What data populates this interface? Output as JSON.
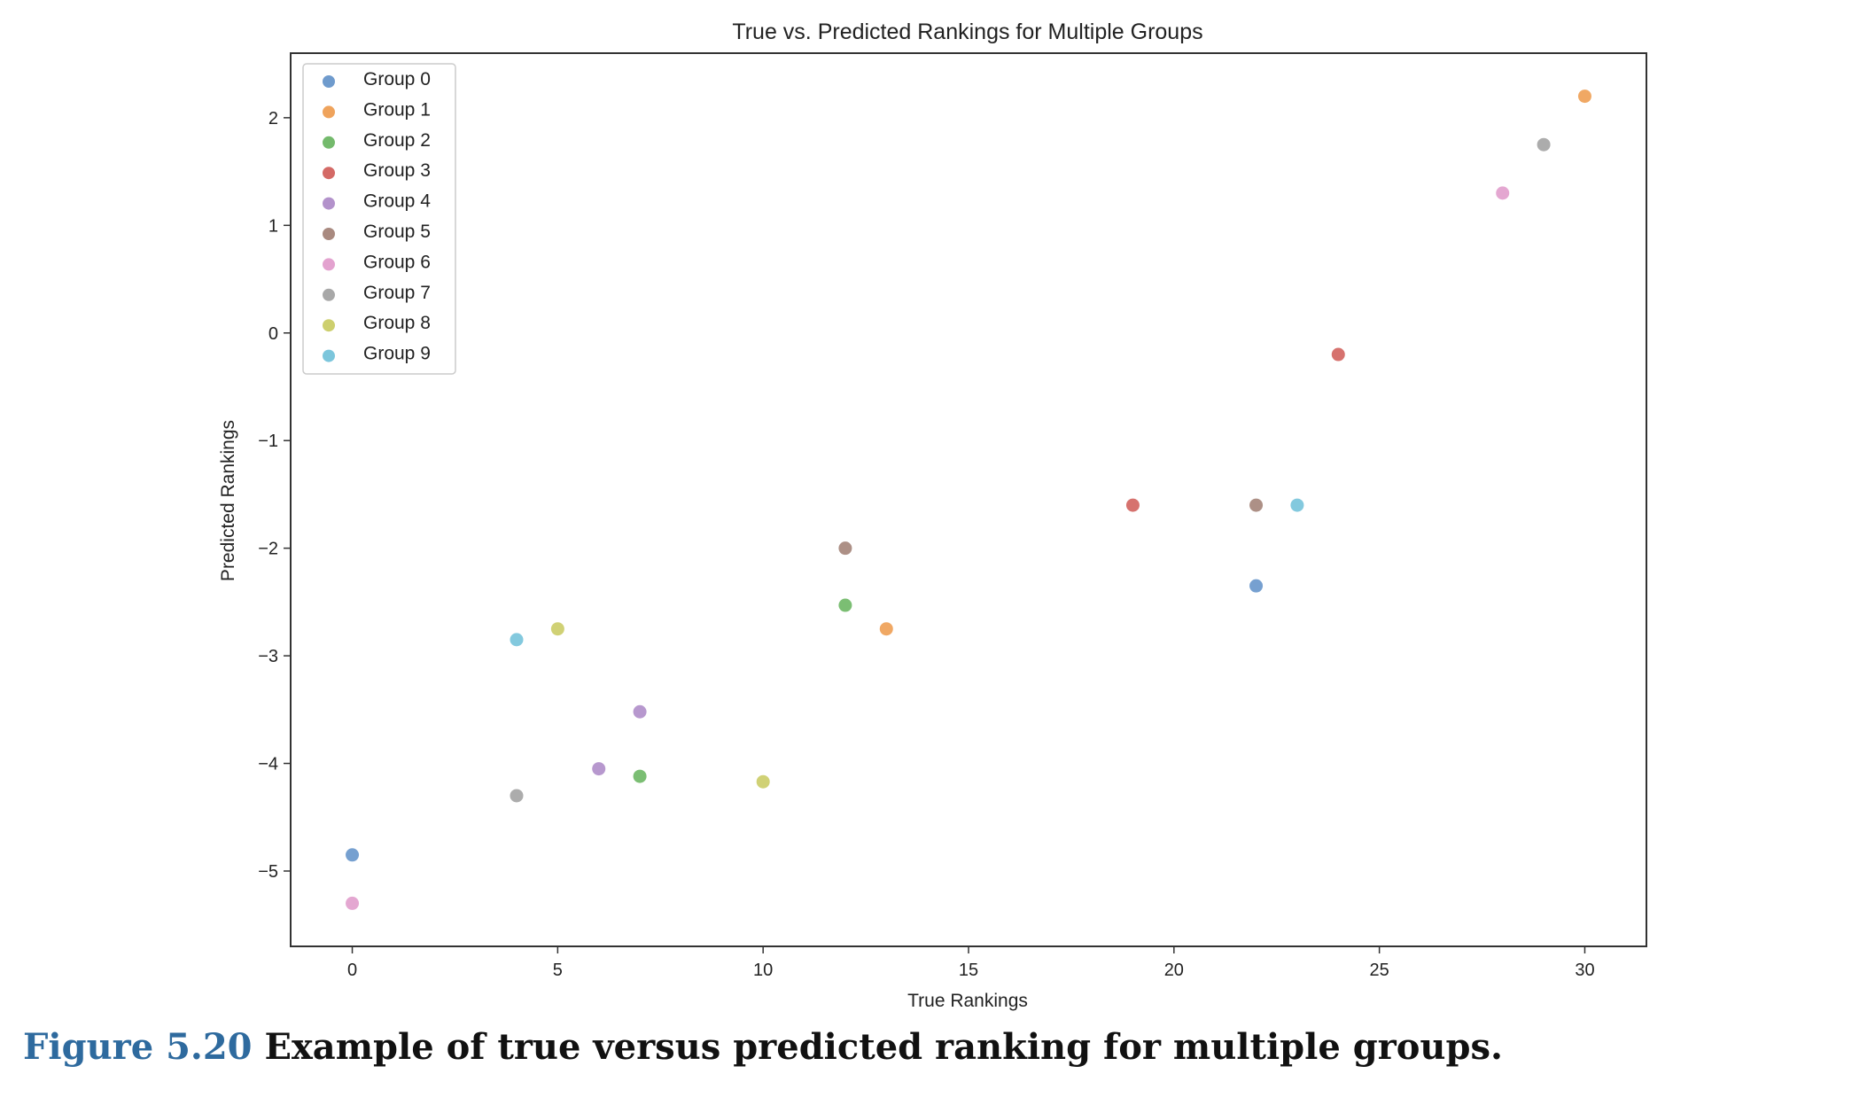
{
  "chart_data": {
    "type": "scatter",
    "title": "True vs. Predicted Rankings for Multiple Groups",
    "xlabel": "True Rankings",
    "ylabel": "Predicted Rankings",
    "xlim": [
      -1.5,
      31.5
    ],
    "ylim": [
      -5.7,
      2.6
    ],
    "xticks": [
      0,
      5,
      10,
      15,
      20,
      25,
      30
    ],
    "xtick_labels": [
      "0",
      "5",
      "10",
      "15",
      "20",
      "25",
      "30"
    ],
    "yticks": [
      -5,
      -4,
      -3,
      -2,
      -1,
      0,
      1,
      2
    ],
    "ytick_labels": [
      "−5",
      "−4",
      "−3",
      "−2",
      "−1",
      "0",
      "1",
      "2"
    ],
    "grid": false,
    "legend_position": "top-left",
    "series": [
      {
        "name": "Group 0",
        "color": "#6f9bcd",
        "points": [
          [
            0,
            -4.85
          ],
          [
            22,
            -2.35
          ]
        ]
      },
      {
        "name": "Group 1",
        "color": "#efa35c",
        "points": [
          [
            30,
            2.2
          ],
          [
            13,
            -2.75
          ]
        ]
      },
      {
        "name": "Group 2",
        "color": "#74ba6c",
        "points": [
          [
            12,
            -2.53
          ],
          [
            7,
            -4.12
          ]
        ]
      },
      {
        "name": "Group 3",
        "color": "#d46a66",
        "points": [
          [
            24,
            -0.2
          ],
          [
            19,
            -1.6
          ]
        ]
      },
      {
        "name": "Group 4",
        "color": "#b392cb",
        "points": [
          [
            7,
            -3.52
          ],
          [
            6,
            -4.05
          ]
        ]
      },
      {
        "name": "Group 5",
        "color": "#a98a80",
        "points": [
          [
            12,
            -2.0
          ],
          [
            22,
            -1.6
          ]
        ]
      },
      {
        "name": "Group 6",
        "color": "#e3a2cf",
        "points": [
          [
            28,
            1.3
          ],
          [
            0,
            -5.3
          ]
        ]
      },
      {
        "name": "Group 7",
        "color": "#a8a8a8",
        "points": [
          [
            29,
            1.75
          ],
          [
            4,
            -4.3
          ]
        ]
      },
      {
        "name": "Group 8",
        "color": "#cdcf6e",
        "points": [
          [
            5,
            -2.75
          ],
          [
            10,
            -4.17
          ]
        ]
      },
      {
        "name": "Group 9",
        "color": "#7cc6dc",
        "points": [
          [
            4,
            -2.85
          ],
          [
            23,
            -1.6
          ]
        ]
      }
    ]
  },
  "caption": {
    "label": "Figure 5.20",
    "text": "Example of true versus predicted ranking for multiple groups."
  }
}
